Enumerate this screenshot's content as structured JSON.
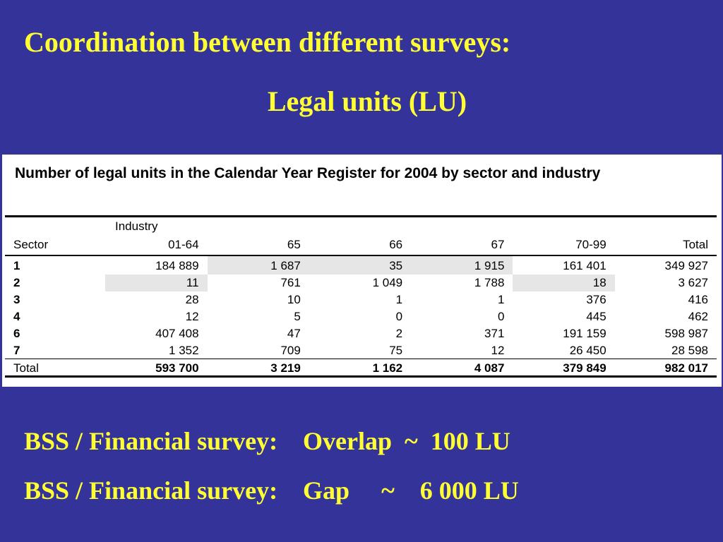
{
  "slide": {
    "title_line1": "Coordination between different surveys:",
    "title_line2": "Legal units (LU)"
  },
  "table": {
    "caption": "Number of legal units in the Calendar Year Register for 2004 by sector and industry",
    "industry_label": "Industry",
    "columns": [
      "Sector",
      "01-64",
      "65",
      "66",
      "67",
      "70-99",
      "Total"
    ],
    "rows": [
      [
        "1",
        "184 889",
        "1 687",
        "35",
        "1 915",
        "161 401",
        "349 927"
      ],
      [
        "2",
        "11",
        "761",
        "1 049",
        "1 788",
        "18",
        "3 627"
      ],
      [
        "3",
        "28",
        "10",
        "1",
        "1",
        "376",
        "416"
      ],
      [
        "4",
        "12",
        "5",
        "0",
        "0",
        "445",
        "462"
      ],
      [
        "6",
        "407 408",
        "47",
        "2",
        "371",
        "191 159",
        "598 987"
      ],
      [
        "7",
        "1 352",
        "709",
        "75",
        "12",
        "26 450",
        "28 598"
      ]
    ],
    "total_row": [
      "Total",
      "593 700",
      "3 219",
      "1 162",
      "4 087",
      "379 849",
      "982 017"
    ]
  },
  "footer": {
    "line1": "BSS / Financial survey:    Overlap  ~  100 LU",
    "line2": "BSS / Financial survey:    Gap     ~    6 000 LU"
  },
  "colors": {
    "background": "#333399",
    "title_text": "#ffff33",
    "table_background": "#ffffff",
    "shaded_cell": "#e6e6e6"
  }
}
